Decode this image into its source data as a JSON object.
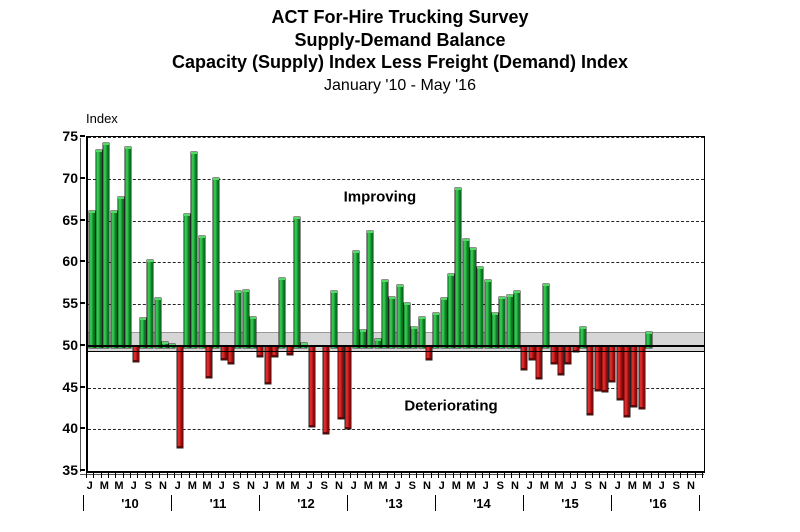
{
  "title": {
    "line1": "ACT For-Hire Trucking Survey",
    "line2": "Supply-Demand Balance",
    "line3": "Capacity (Supply) Index Less Freight (Demand) Index",
    "line4": "January '10 - May '16"
  },
  "chart_data": {
    "type": "bar",
    "title": "ACT For-Hire Trucking Survey - Supply-Demand Balance",
    "subtitle": "Capacity (Supply) Index Less Freight (Demand) Index",
    "period": "January '10 - May '16",
    "ylabel": "Index",
    "ylim": [
      35,
      75
    ],
    "yticks": [
      35,
      40,
      45,
      50,
      55,
      60,
      65,
      70,
      75
    ],
    "baseline": 50,
    "band": {
      "from": 49.4,
      "to": 51.6
    },
    "grid": "dashed-horizontal",
    "month_tick_labels": [
      "J",
      "M",
      "M",
      "J",
      "S",
      "N"
    ],
    "years": [
      {
        "label": "'10",
        "values": [
          66.1,
          73.4,
          74.3,
          66.1,
          67.8,
          73.8,
          48.3,
          53.3,
          60.3,
          55.7,
          50.4,
          50.2
        ]
      },
      {
        "label": "'11",
        "values": [
          38.0,
          65.8,
          73.2,
          63.1,
          46.4,
          70.1,
          48.5,
          48.1,
          56.5,
          56.7,
          53.5,
          48.9
        ]
      },
      {
        "label": "'12",
        "values": [
          45.6,
          48.9,
          58.1,
          49.1,
          65.4,
          50.3,
          40.5,
          50.0,
          39.7,
          56.6,
          41.5,
          40.3
        ]
      },
      {
        "label": "'13",
        "values": [
          61.4,
          51.9,
          63.8,
          50.8,
          57.9,
          55.8,
          57.3,
          55.1,
          52.2,
          53.5,
          48.5,
          53.9
        ]
      },
      {
        "label": "'14",
        "values": [
          55.7,
          58.6,
          68.9,
          62.8,
          61.7,
          59.4,
          57.9,
          53.9,
          55.8,
          56.1,
          56.5,
          47.3
        ]
      },
      {
        "label": "'15",
        "values": [
          48.5,
          46.2,
          57.4,
          48.0,
          46.7,
          48.1,
          49.5,
          52.3,
          41.9,
          44.8,
          44.7,
          45.9
        ]
      },
      {
        "label": "'16",
        "values": [
          43.8,
          41.7,
          42.9,
          42.7,
          51.7,
          null,
          null,
          null,
          null,
          null,
          null,
          null
        ]
      }
    ],
    "annotations": [
      {
        "text": "Improving",
        "month": 39.8,
        "value": 67.8
      },
      {
        "text": "Deteriorating",
        "month": 49.5,
        "value": 42.8
      }
    ],
    "colors": {
      "positive": "#1daa3a",
      "negative": "#c51717",
      "band": "#d6d6d6",
      "axis": "#000000"
    }
  }
}
